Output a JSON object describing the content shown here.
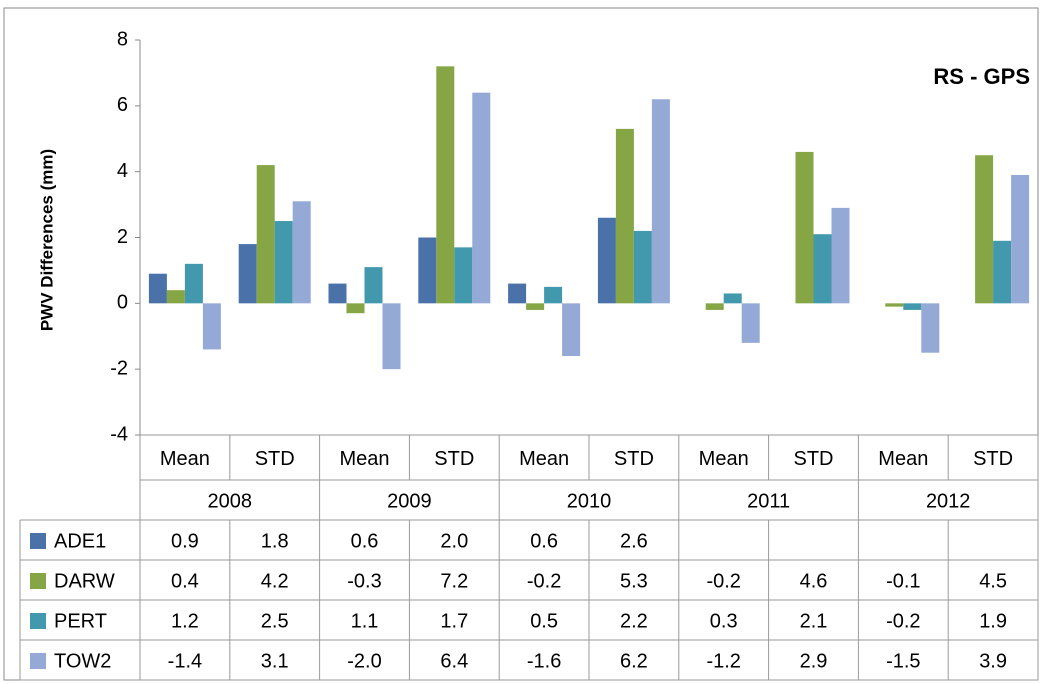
{
  "chart_data": {
    "type": "bar",
    "annotation": "RS - GPS",
    "y_label": "PWV Differences (mm)",
    "categories": [
      "Mean",
      "STD",
      "Mean",
      "STD",
      "Mean",
      "STD",
      "Mean",
      "STD",
      "Mean",
      "STD"
    ],
    "groups": [
      "2008",
      "2009",
      "2010",
      "2011",
      "2012"
    ],
    "ylim": [
      -4,
      8
    ],
    "yticks": [
      -4,
      -2,
      0,
      2,
      4,
      6,
      8
    ],
    "grid": false,
    "series": [
      {
        "name": "ADE1",
        "color": "#4a72a8",
        "values": [
          0.9,
          1.8,
          0.6,
          2.0,
          0.6,
          2.6,
          null,
          null,
          null,
          null
        ],
        "value_labels": [
          "0.9",
          "1.8",
          "0.6",
          "2.0",
          "0.6",
          "2.6",
          null,
          null,
          null,
          null
        ]
      },
      {
        "name": "DARW",
        "color": "#86a646",
        "values": [
          0.4,
          4.2,
          -0.3,
          7.2,
          -0.2,
          5.3,
          -0.2,
          4.6,
          -0.1,
          4.5
        ],
        "value_labels": [
          "0.4",
          "4.2",
          "-0.3",
          "7.2",
          "-0.2",
          "5.3",
          "-0.2",
          "4.6",
          "-0.1",
          "4.5"
        ]
      },
      {
        "name": "PERT",
        "color": "#4298ad",
        "values": [
          1.2,
          2.5,
          1.1,
          1.7,
          0.5,
          2.2,
          0.3,
          2.1,
          -0.2,
          1.9
        ],
        "value_labels": [
          "1.2",
          "2.5",
          "1.1",
          "1.7",
          "0.5",
          "2.2",
          "0.3",
          "2.1",
          "-0.2",
          "1.9"
        ]
      },
      {
        "name": "TOW2",
        "color": "#94a9d6",
        "values": [
          -1.4,
          3.1,
          -2.0,
          6.4,
          -1.6,
          6.2,
          -1.2,
          2.9,
          -1.5,
          3.9
        ],
        "value_labels": [
          "-1.4",
          "3.1",
          "-2.0",
          "6.4",
          "-1.6",
          "6.2",
          "-1.2",
          "2.9",
          "-1.5",
          "3.9"
        ]
      }
    ]
  }
}
